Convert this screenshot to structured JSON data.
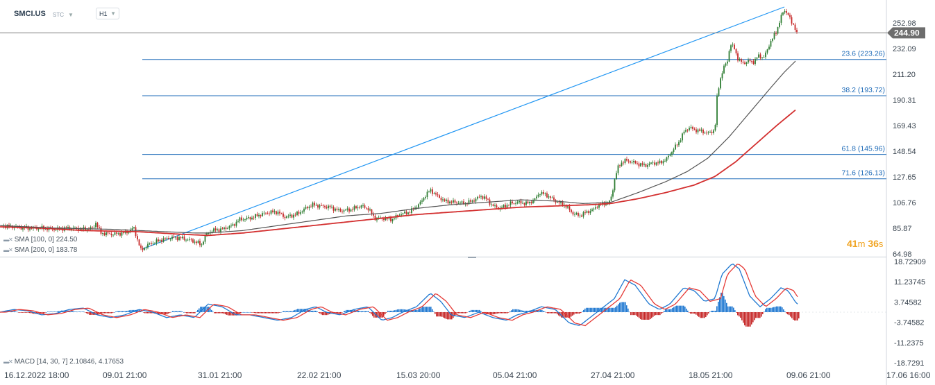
{
  "header": {
    "ticker": "SMCI.US",
    "session": "STC",
    "timeframe": "H1"
  },
  "legend": {
    "sma100": "SMA [100, 0]  224.50",
    "sma200": "SMA [200, 0]  183.78",
    "macd": "MACD [14, 30, 7]  2.10846,  4.17653"
  },
  "timer": {
    "min": "41",
    "min_unit": "m",
    "sec": "36",
    "sec_unit": "s"
  },
  "colors": {
    "up": "#2e7d32",
    "down": "#c62828",
    "fib": "#1e6bb8",
    "trend": "#2196f3",
    "sma100": "#555555",
    "sma200": "#d32f2f",
    "macd": "#1f78d1",
    "signal": "#e53935",
    "hist_pos": "#1f78d1",
    "hist_neg": "#c62828",
    "price_tag": "#6d6d6d"
  },
  "chart_data": {
    "type": "candlestick",
    "price_axis": {
      "min": 64.98,
      "max": 266,
      "ticks": [
        "252.98",
        "232.09",
        "211.20",
        "190.31",
        "169.43",
        "148.54",
        "127.65",
        "106.76",
        "85.87",
        "64.98"
      ]
    },
    "x_labels": [
      "16.12.2022  18:00",
      "09.01  21:00",
      "31.01  21:00",
      "22.02  21:00",
      "15.03  20:00",
      "05.04  21:00",
      "27.04  21:00",
      "18.05  21:00",
      "09.06  21:00",
      "17.06  16:00"
    ],
    "current_price": "244.90",
    "fibonacci": [
      {
        "label": "23.6 (223.26)",
        "value": 223.26
      },
      {
        "label": "38.2 (193.72)",
        "value": 193.72
      },
      {
        "label": "61.8 (145.96)",
        "value": 145.96
      },
      {
        "label": "71.6 (126.13)",
        "value": 126.13
      }
    ],
    "price_path": [
      [
        0,
        88
      ],
      [
        20,
        87
      ],
      [
        40,
        86
      ],
      [
        60,
        86
      ],
      [
        80,
        85
      ],
      [
        100,
        86
      ],
      [
        120,
        85
      ],
      [
        135,
        86
      ],
      [
        137,
        92
      ],
      [
        140,
        88
      ],
      [
        145,
        82
      ],
      [
        160,
        81
      ],
      [
        180,
        82
      ],
      [
        193,
        86
      ],
      [
        196,
        80
      ],
      [
        203,
        68
      ],
      [
        215,
        73
      ],
      [
        230,
        76
      ],
      [
        245,
        78
      ],
      [
        260,
        78
      ],
      [
        275,
        76
      ],
      [
        285,
        74
      ],
      [
        290,
        72
      ],
      [
        296,
        80
      ],
      [
        305,
        84
      ],
      [
        320,
        85
      ],
      [
        335,
        88
      ],
      [
        345,
        93
      ],
      [
        360,
        94
      ],
      [
        375,
        97
      ],
      [
        390,
        99
      ],
      [
        400,
        99
      ],
      [
        410,
        95
      ],
      [
        420,
        96
      ],
      [
        430,
        98
      ],
      [
        440,
        102
      ],
      [
        450,
        105
      ],
      [
        460,
        104
      ],
      [
        475,
        103
      ],
      [
        490,
        100
      ],
      [
        505,
        101
      ],
      [
        520,
        104
      ],
      [
        530,
        102
      ],
      [
        540,
        94
      ],
      [
        550,
        94
      ],
      [
        565,
        93
      ],
      [
        575,
        97
      ],
      [
        590,
        99
      ],
      [
        605,
        106
      ],
      [
        612,
        112
      ],
      [
        620,
        117
      ],
      [
        628,
        113
      ],
      [
        640,
        108
      ],
      [
        655,
        107
      ],
      [
        670,
        106
      ],
      [
        680,
        108
      ],
      [
        693,
        112
      ],
      [
        700,
        110
      ],
      [
        710,
        104
      ],
      [
        720,
        102
      ],
      [
        735,
        106
      ],
      [
        745,
        107
      ],
      [
        760,
        106
      ],
      [
        770,
        109
      ],
      [
        778,
        115
      ],
      [
        790,
        112
      ],
      [
        800,
        108
      ],
      [
        815,
        104
      ],
      [
        825,
        98
      ],
      [
        835,
        96
      ],
      [
        845,
        99
      ],
      [
        855,
        101
      ],
      [
        860,
        104
      ],
      [
        870,
        106
      ],
      [
        878,
        107
      ],
      [
        882,
        114
      ],
      [
        885,
        125
      ],
      [
        890,
        135
      ],
      [
        895,
        139
      ],
      [
        900,
        141
      ],
      [
        910,
        140
      ],
      [
        920,
        138
      ],
      [
        930,
        137
      ],
      [
        940,
        139
      ],
      [
        950,
        139
      ],
      [
        960,
        142
      ],
      [
        970,
        150
      ],
      [
        978,
        156
      ],
      [
        985,
        164
      ],
      [
        993,
        168
      ],
      [
        1000,
        166
      ],
      [
        1010,
        165
      ],
      [
        1020,
        163
      ],
      [
        1030,
        166
      ],
      [
        1033,
        192
      ],
      [
        1037,
        206
      ],
      [
        1042,
        216
      ],
      [
        1048,
        222
      ],
      [
        1052,
        236
      ],
      [
        1058,
        232
      ],
      [
        1063,
        224
      ],
      [
        1070,
        220
      ],
      [
        1078,
        222
      ],
      [
        1085,
        221
      ],
      [
        1092,
        226
      ],
      [
        1100,
        225
      ],
      [
        1105,
        230
      ],
      [
        1110,
        238
      ],
      [
        1118,
        245
      ],
      [
        1125,
        258
      ],
      [
        1130,
        263
      ],
      [
        1135,
        261
      ],
      [
        1140,
        253
      ],
      [
        1145,
        250
      ],
      [
        1149,
        243
      ]
    ],
    "sma100_path": [
      [
        0,
        88
      ],
      [
        40,
        87
      ],
      [
        80,
        86
      ],
      [
        120,
        85.5
      ],
      [
        160,
        85
      ],
      [
        200,
        84
      ],
      [
        240,
        83
      ],
      [
        280,
        82
      ],
      [
        300,
        82
      ],
      [
        350,
        84
      ],
      [
        400,
        88
      ],
      [
        450,
        92
      ],
      [
        500,
        96
      ],
      [
        550,
        98
      ],
      [
        600,
        102
      ],
      [
        650,
        105
      ],
      [
        700,
        107
      ],
      [
        750,
        109
      ],
      [
        800,
        108
      ],
      [
        840,
        106
      ],
      [
        880,
        107
      ],
      [
        920,
        115
      ],
      [
        960,
        124
      ],
      [
        990,
        132
      ],
      [
        1020,
        143
      ],
      [
        1050,
        160
      ],
      [
        1080,
        180
      ],
      [
        1110,
        200
      ],
      [
        1130,
        213
      ],
      [
        1148,
        223
      ]
    ],
    "sma200_path": [
      [
        0,
        87
      ],
      [
        60,
        86
      ],
      [
        120,
        84
      ],
      [
        200,
        83
      ],
      [
        260,
        81
      ],
      [
        300,
        80
      ],
      [
        350,
        82
      ],
      [
        400,
        85
      ],
      [
        450,
        88
      ],
      [
        500,
        91
      ],
      [
        550,
        94
      ],
      [
        600,
        97
      ],
      [
        650,
        99
      ],
      [
        700,
        101
      ],
      [
        750,
        103
      ],
      [
        800,
        104
      ],
      [
        850,
        105
      ],
      [
        880,
        106
      ],
      [
        920,
        110
      ],
      [
        960,
        115
      ],
      [
        1000,
        121
      ],
      [
        1030,
        128
      ],
      [
        1060,
        140
      ],
      [
        1090,
        155
      ],
      [
        1120,
        170
      ],
      [
        1148,
        183
      ]
    ],
    "trendline": [
      [
        205,
        69
      ],
      [
        1130,
        266
      ]
    ],
    "macd_axis": {
      "min": -18.7291,
      "max": 18.72909,
      "ticks": [
        "18.72909",
        "11.23745",
        "3.74582",
        "-3.74582",
        "-11.2375",
        "-18.7291"
      ]
    },
    "macd_keyframes": [
      [
        0,
        0
      ],
      [
        20,
        1
      ],
      [
        40,
        0.5
      ],
      [
        60,
        -1
      ],
      [
        80,
        -0.5
      ],
      [
        100,
        1
      ],
      [
        120,
        1.5
      ],
      [
        140,
        -1
      ],
      [
        160,
        -2
      ],
      [
        180,
        -1
      ],
      [
        200,
        1
      ],
      [
        220,
        0
      ],
      [
        240,
        -2
      ],
      [
        260,
        -1
      ],
      [
        280,
        -2
      ],
      [
        300,
        3
      ],
      [
        320,
        2
      ],
      [
        340,
        -1
      ],
      [
        360,
        -1
      ],
      [
        380,
        -2
      ],
      [
        400,
        -3
      ],
      [
        420,
        -2
      ],
      [
        440,
        1
      ],
      [
        455,
        2
      ],
      [
        470,
        0
      ],
      [
        490,
        -1
      ],
      [
        510,
        1
      ],
      [
        530,
        2
      ],
      [
        550,
        -3
      ],
      [
        565,
        -2
      ],
      [
        580,
        0
      ],
      [
        600,
        2
      ],
      [
        620,
        7
      ],
      [
        635,
        4
      ],
      [
        650,
        -1
      ],
      [
        670,
        -2
      ],
      [
        690,
        0
      ],
      [
        710,
        -2
      ],
      [
        730,
        -3
      ],
      [
        745,
        -1
      ],
      [
        760,
        0
      ],
      [
        780,
        2
      ],
      [
        800,
        1
      ],
      [
        820,
        -4
      ],
      [
        835,
        -5
      ],
      [
        850,
        -2
      ],
      [
        870,
        2
      ],
      [
        885,
        5
      ],
      [
        900,
        12
      ],
      [
        915,
        10
      ],
      [
        935,
        3
      ],
      [
        950,
        1
      ],
      [
        965,
        3
      ],
      [
        985,
        9
      ],
      [
        1000,
        8
      ],
      [
        1015,
        4
      ],
      [
        1030,
        5
      ],
      [
        1040,
        14
      ],
      [
        1055,
        18
      ],
      [
        1065,
        16
      ],
      [
        1080,
        6
      ],
      [
        1095,
        2
      ],
      [
        1110,
        5
      ],
      [
        1125,
        9
      ],
      [
        1135,
        8
      ],
      [
        1148,
        3
      ]
    ]
  }
}
